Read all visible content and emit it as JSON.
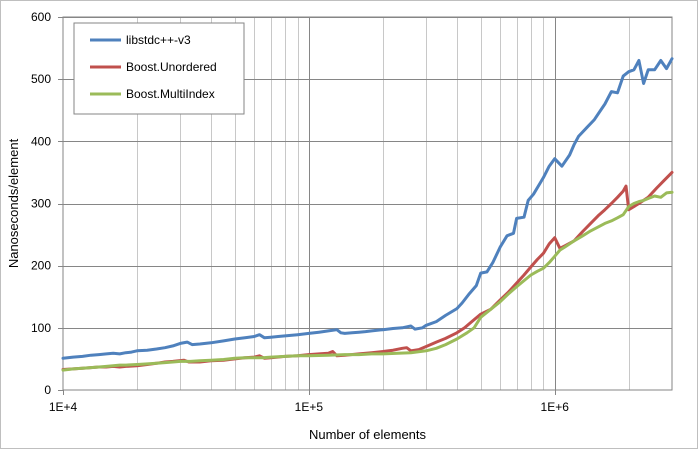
{
  "chart_data": {
    "type": "line",
    "title": "",
    "xlabel": "Number of elements",
    "ylabel": "Nanoseconds/element",
    "xscale": "log",
    "xlim": [
      10000,
      3000000
    ],
    "ylim": [
      0,
      600
    ],
    "x_tick_labels": [
      {
        "value": 10000,
        "label": "1E+4"
      },
      {
        "value": 100000,
        "label": "1E+5"
      },
      {
        "value": 1000000,
        "label": "1E+6"
      }
    ],
    "y_ticks": [
      0,
      100,
      200,
      300,
      400,
      500,
      600
    ],
    "grid": "on",
    "legend_position": "top-left",
    "series": [
      {
        "name": "libstdc++-v3",
        "color": "#4f81bd",
        "points": [
          [
            10000,
            51
          ],
          [
            11000,
            53
          ],
          [
            12000,
            54
          ],
          [
            13000,
            56
          ],
          [
            14000,
            57
          ],
          [
            15000,
            58
          ],
          [
            16000,
            59
          ],
          [
            17000,
            58
          ],
          [
            18000,
            60
          ],
          [
            19000,
            61
          ],
          [
            20000,
            63
          ],
          [
            22000,
            64
          ],
          [
            24000,
            66
          ],
          [
            26000,
            68
          ],
          [
            28000,
            71
          ],
          [
            30000,
            75
          ],
          [
            32000,
            77
          ],
          [
            33500,
            73
          ],
          [
            36000,
            74
          ],
          [
            40000,
            76
          ],
          [
            45000,
            79
          ],
          [
            50000,
            82
          ],
          [
            55000,
            84
          ],
          [
            60000,
            86
          ],
          [
            63000,
            89
          ],
          [
            66000,
            84
          ],
          [
            70000,
            85
          ],
          [
            75000,
            86
          ],
          [
            80000,
            87
          ],
          [
            90000,
            89
          ],
          [
            100000,
            91
          ],
          [
            110000,
            93
          ],
          [
            120000,
            95
          ],
          [
            130000,
            97
          ],
          [
            135000,
            92
          ],
          [
            140000,
            91
          ],
          [
            150000,
            92
          ],
          [
            160000,
            93
          ],
          [
            170000,
            94
          ],
          [
            180000,
            95
          ],
          [
            200000,
            97
          ],
          [
            220000,
            99
          ],
          [
            240000,
            100
          ],
          [
            260000,
            103
          ],
          [
            270000,
            98
          ],
          [
            290000,
            100
          ],
          [
            300000,
            104
          ],
          [
            330000,
            110
          ],
          [
            360000,
            120
          ],
          [
            400000,
            131
          ],
          [
            420000,
            140
          ],
          [
            450000,
            155
          ],
          [
            480000,
            168
          ],
          [
            500000,
            188
          ],
          [
            530000,
            190
          ],
          [
            560000,
            205
          ],
          [
            600000,
            230
          ],
          [
            640000,
            248
          ],
          [
            680000,
            252
          ],
          [
            700000,
            276
          ],
          [
            750000,
            278
          ],
          [
            780000,
            305
          ],
          [
            820000,
            315
          ],
          [
            870000,
            332
          ],
          [
            900000,
            342
          ],
          [
            950000,
            360
          ],
          [
            1000000,
            372
          ],
          [
            1070000,
            360
          ],
          [
            1150000,
            378
          ],
          [
            1200000,
            395
          ],
          [
            1250000,
            408
          ],
          [
            1350000,
            422
          ],
          [
            1450000,
            435
          ],
          [
            1550000,
            452
          ],
          [
            1600000,
            460
          ],
          [
            1700000,
            480
          ],
          [
            1800000,
            478
          ],
          [
            1900000,
            505
          ],
          [
            2000000,
            512
          ],
          [
            2100000,
            515
          ],
          [
            2200000,
            530
          ],
          [
            2300000,
            493
          ],
          [
            2400000,
            515
          ],
          [
            2550000,
            515
          ],
          [
            2700000,
            530
          ],
          [
            2850000,
            517
          ],
          [
            3000000,
            533
          ]
        ]
      },
      {
        "name": "Boost.Unordered",
        "color": "#c0504d",
        "points": [
          [
            10000,
            33
          ],
          [
            11000,
            34
          ],
          [
            12000,
            35
          ],
          [
            13000,
            36
          ],
          [
            14000,
            37
          ],
          [
            15000,
            37
          ],
          [
            16000,
            38
          ],
          [
            17000,
            37
          ],
          [
            18000,
            38
          ],
          [
            20000,
            39
          ],
          [
            22000,
            41
          ],
          [
            24000,
            43
          ],
          [
            26000,
            45
          ],
          [
            28000,
            46
          ],
          [
            31000,
            48
          ],
          [
            32500,
            45
          ],
          [
            36000,
            45
          ],
          [
            40000,
            47
          ],
          [
            45000,
            48
          ],
          [
            50000,
            50
          ],
          [
            55000,
            52
          ],
          [
            60000,
            53
          ],
          [
            63000,
            55
          ],
          [
            66000,
            51
          ],
          [
            70000,
            52
          ],
          [
            80000,
            54
          ],
          [
            90000,
            55
          ],
          [
            100000,
            57
          ],
          [
            110000,
            58
          ],
          [
            120000,
            59
          ],
          [
            125000,
            62
          ],
          [
            130000,
            55
          ],
          [
            140000,
            56
          ],
          [
            160000,
            58
          ],
          [
            180000,
            60
          ],
          [
            200000,
            62
          ],
          [
            220000,
            64
          ],
          [
            240000,
            67
          ],
          [
            250000,
            68
          ],
          [
            260000,
            63
          ],
          [
            280000,
            65
          ],
          [
            300000,
            70
          ],
          [
            330000,
            77
          ],
          [
            360000,
            83
          ],
          [
            400000,
            92
          ],
          [
            430000,
            100
          ],
          [
            460000,
            110
          ],
          [
            500000,
            122
          ],
          [
            550000,
            130
          ],
          [
            600000,
            145
          ],
          [
            650000,
            158
          ],
          [
            700000,
            172
          ],
          [
            750000,
            185
          ],
          [
            800000,
            198
          ],
          [
            850000,
            210
          ],
          [
            900000,
            220
          ],
          [
            950000,
            235
          ],
          [
            1000000,
            245
          ],
          [
            1050000,
            228
          ],
          [
            1100000,
            232
          ],
          [
            1200000,
            240
          ],
          [
            1300000,
            255
          ],
          [
            1400000,
            268
          ],
          [
            1500000,
            280
          ],
          [
            1600000,
            290
          ],
          [
            1700000,
            300
          ],
          [
            1800000,
            310
          ],
          [
            1900000,
            320
          ],
          [
            1950000,
            328
          ],
          [
            2000000,
            290
          ],
          [
            2100000,
            295
          ],
          [
            2200000,
            300
          ],
          [
            2400000,
            310
          ],
          [
            2600000,
            325
          ],
          [
            2800000,
            338
          ],
          [
            3000000,
            350
          ]
        ]
      },
      {
        "name": "Boost.MultiIndex",
        "color": "#9bbb59",
        "points": [
          [
            10000,
            32
          ],
          [
            11000,
            34
          ],
          [
            12000,
            35
          ],
          [
            13000,
            36
          ],
          [
            14000,
            37
          ],
          [
            15000,
            38
          ],
          [
            16000,
            39
          ],
          [
            17000,
            40
          ],
          [
            18000,
            40
          ],
          [
            20000,
            41
          ],
          [
            22000,
            42
          ],
          [
            24000,
            43
          ],
          [
            26000,
            44
          ],
          [
            28000,
            45
          ],
          [
            30000,
            46
          ],
          [
            33000,
            46
          ],
          [
            36000,
            47
          ],
          [
            40000,
            48
          ],
          [
            45000,
            49
          ],
          [
            50000,
            51
          ],
          [
            55000,
            52
          ],
          [
            60000,
            52
          ],
          [
            65000,
            52
          ],
          [
            70000,
            53
          ],
          [
            80000,
            54
          ],
          [
            90000,
            55
          ],
          [
            100000,
            55
          ],
          [
            120000,
            56
          ],
          [
            140000,
            57
          ],
          [
            160000,
            57
          ],
          [
            180000,
            58
          ],
          [
            200000,
            58
          ],
          [
            230000,
            59
          ],
          [
            260000,
            60
          ],
          [
            300000,
            63
          ],
          [
            330000,
            67
          ],
          [
            360000,
            73
          ],
          [
            400000,
            82
          ],
          [
            440000,
            92
          ],
          [
            470000,
            100
          ],
          [
            500000,
            117
          ],
          [
            550000,
            130
          ],
          [
            600000,
            142
          ],
          [
            650000,
            155
          ],
          [
            700000,
            166
          ],
          [
            750000,
            176
          ],
          [
            800000,
            185
          ],
          [
            850000,
            191
          ],
          [
            900000,
            196
          ],
          [
            950000,
            205
          ],
          [
            1000000,
            215
          ],
          [
            1050000,
            225
          ],
          [
            1100000,
            230
          ],
          [
            1200000,
            240
          ],
          [
            1300000,
            248
          ],
          [
            1400000,
            256
          ],
          [
            1500000,
            262
          ],
          [
            1600000,
            268
          ],
          [
            1700000,
            272
          ],
          [
            1800000,
            277
          ],
          [
            1900000,
            282
          ],
          [
            2000000,
            295
          ],
          [
            2100000,
            300
          ],
          [
            2200000,
            303
          ],
          [
            2300000,
            305
          ],
          [
            2400000,
            308
          ],
          [
            2550000,
            312
          ],
          [
            2700000,
            310
          ],
          [
            2850000,
            317
          ],
          [
            3000000,
            318
          ]
        ]
      }
    ]
  }
}
